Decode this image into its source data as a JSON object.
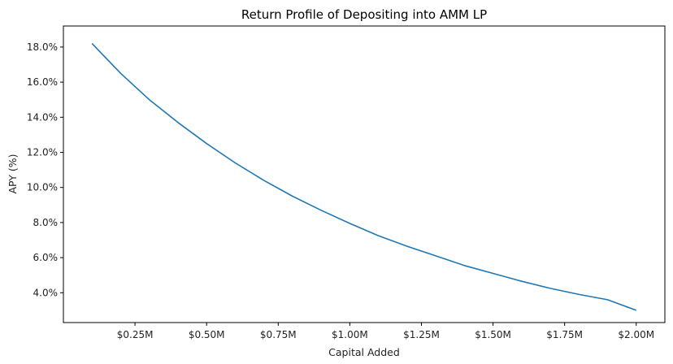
{
  "chart_data": {
    "type": "line",
    "title": "Return Profile of Depositing into AMM LP",
    "xlabel": "Capital Added",
    "ylabel": "APY (%)",
    "xlim": [
      0.0,
      2.1
    ],
    "ylim": [
      2.3,
      19.2
    ],
    "x_ticks": [
      0.25,
      0.5,
      0.75,
      1.0,
      1.25,
      1.5,
      1.75,
      2.0
    ],
    "x_tick_labels": [
      "$0.25M",
      "$0.50M",
      "$0.75M",
      "$1.00M",
      "$1.25M",
      "$1.50M",
      "$1.75M",
      "$2.00M"
    ],
    "y_ticks": [
      4,
      6,
      8,
      10,
      12,
      14,
      16,
      18
    ],
    "y_tick_labels": [
      "4.0%",
      "6.0%",
      "8.0%",
      "10.0%",
      "12.0%",
      "14.0%",
      "16.0%",
      "18.0%"
    ],
    "grid": false,
    "series": [
      {
        "color": "#1f77b4",
        "x": [
          0.1,
          0.2,
          0.3,
          0.4,
          0.5,
          0.6,
          0.7,
          0.8,
          0.9,
          1.0,
          1.1,
          1.2,
          1.3,
          1.4,
          1.5,
          1.6,
          1.7,
          1.8,
          1.9,
          2.0
        ],
        "y": [
          18.2,
          16.5,
          15.0,
          13.7,
          12.5,
          11.4,
          10.4,
          9.5,
          8.7,
          7.95,
          7.25,
          6.65,
          6.1,
          5.55,
          5.1,
          4.65,
          4.25,
          3.9,
          3.6,
          3.0
        ]
      }
    ]
  }
}
